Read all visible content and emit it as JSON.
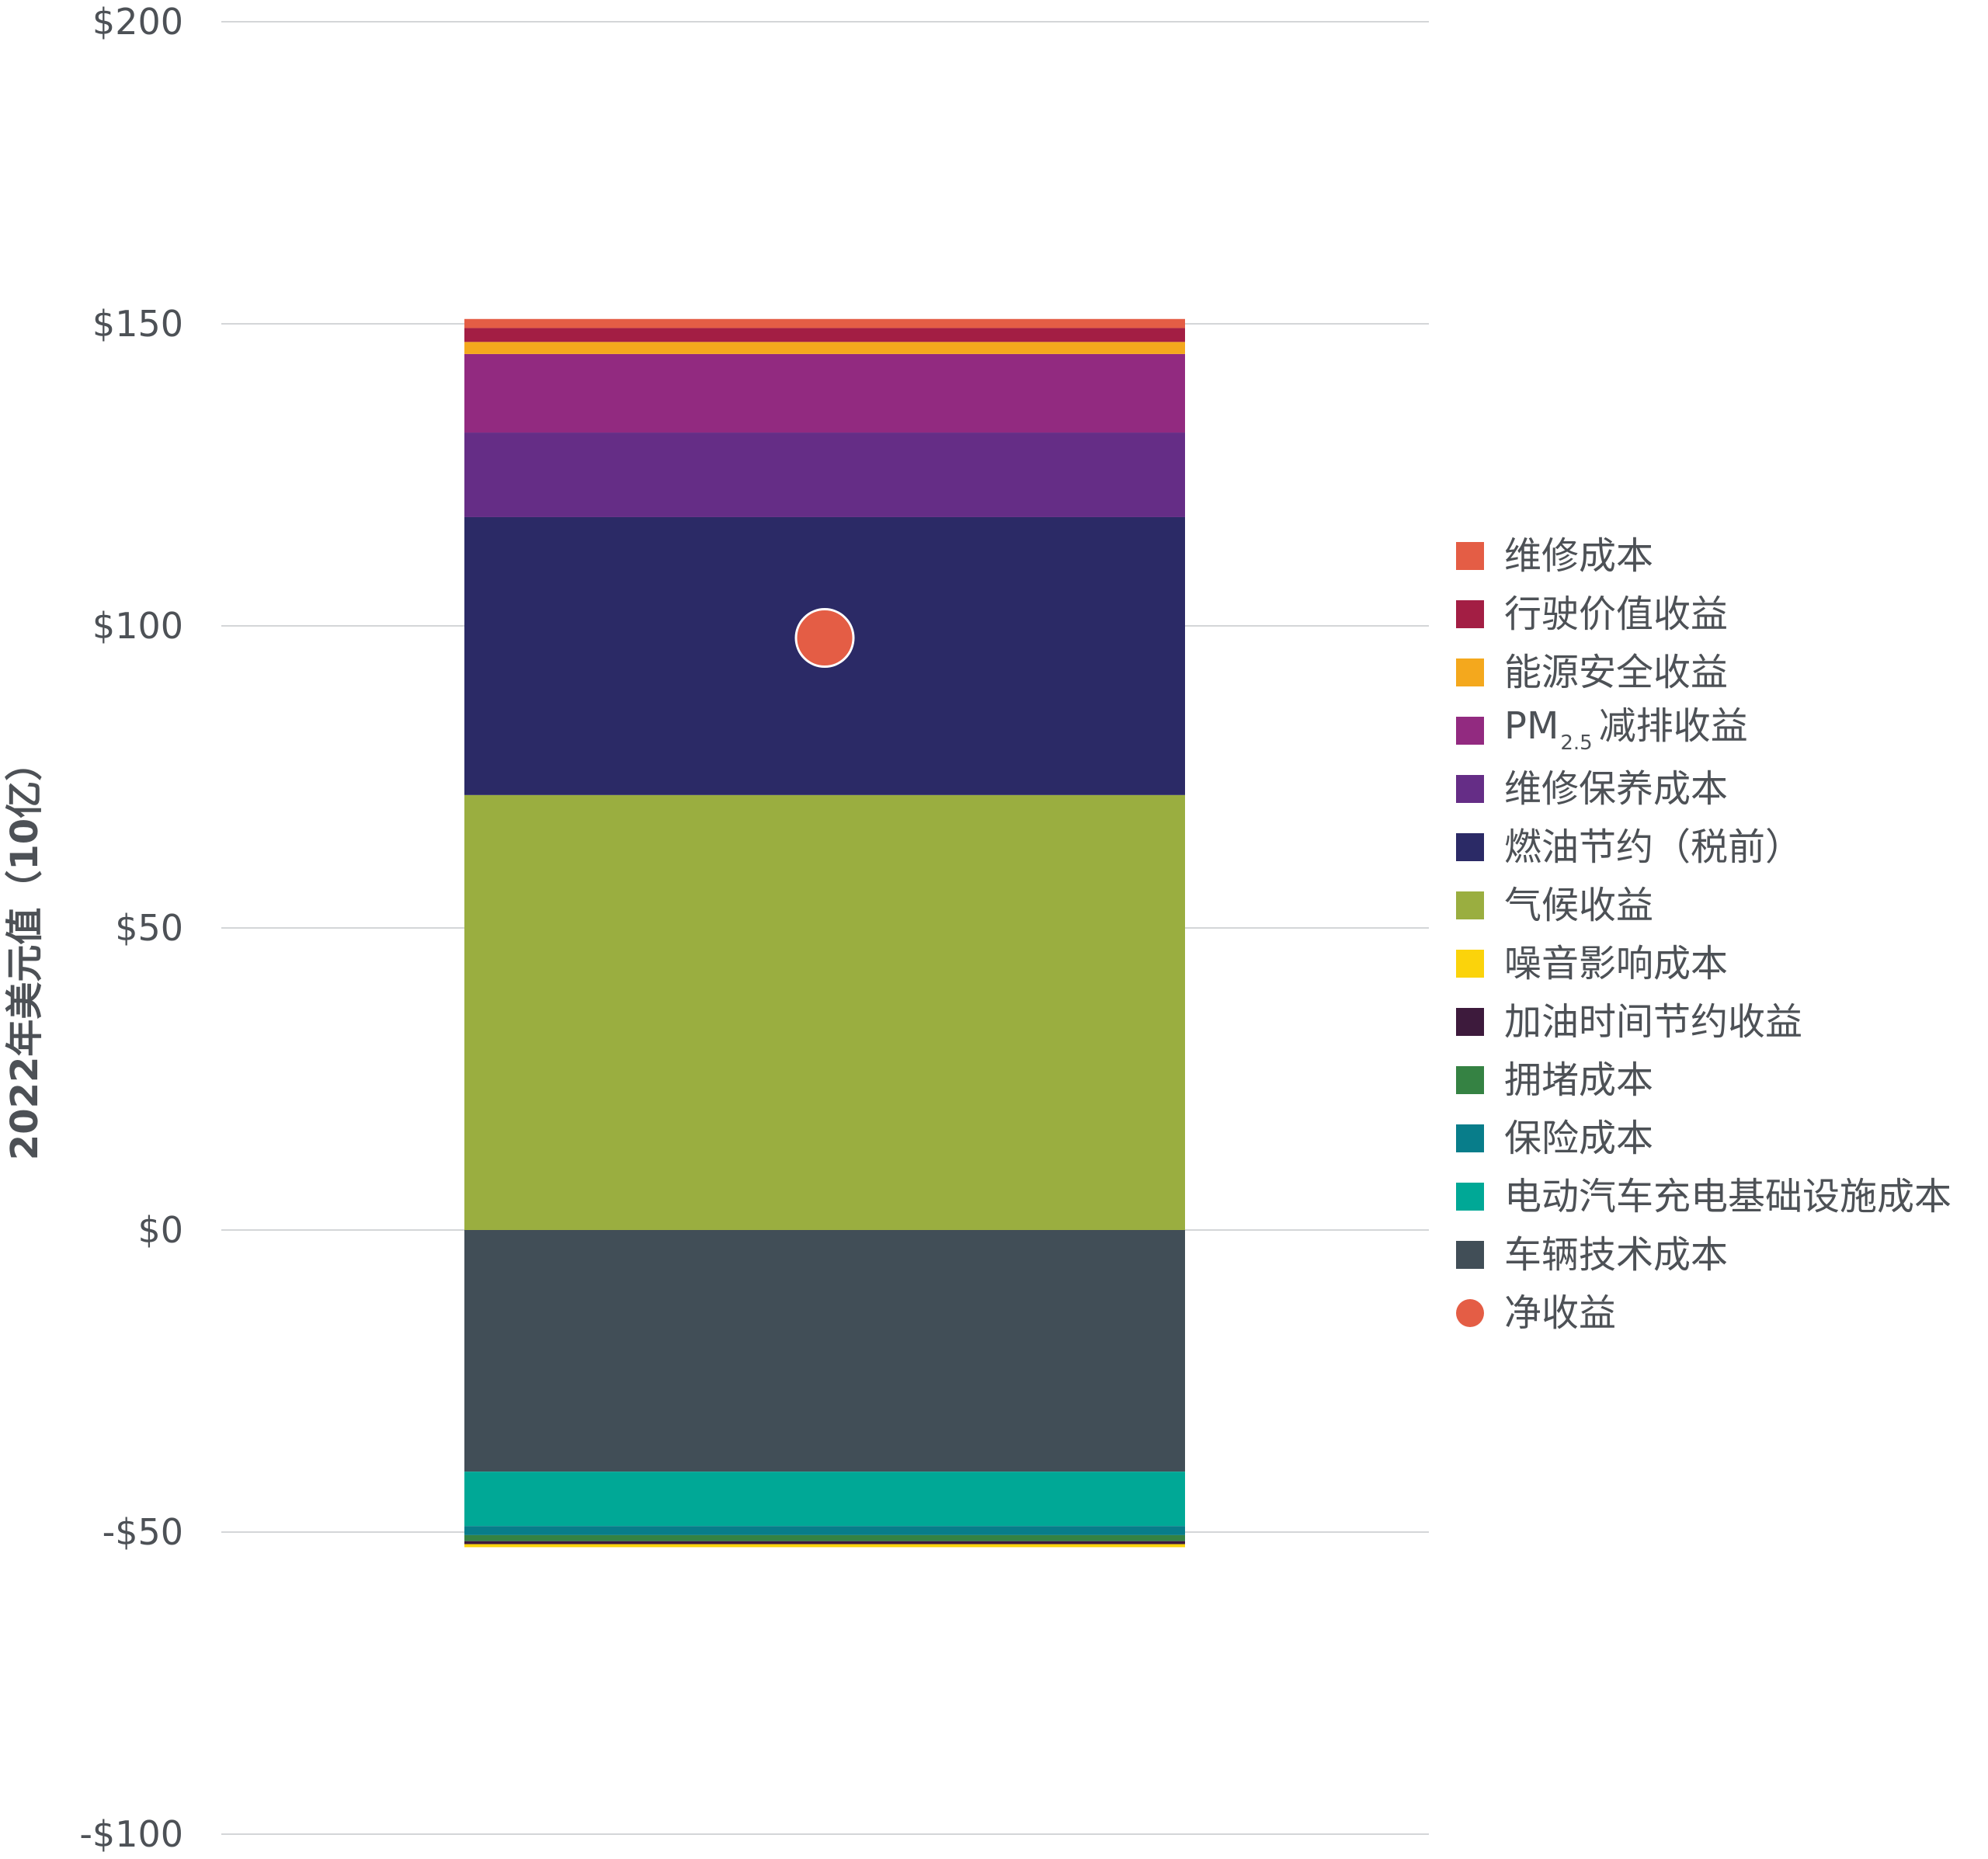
{
  "chart_data": {
    "type": "bar",
    "stacked": true,
    "categories": [
      ""
    ],
    "ylabel": "2022年美元值（10亿）",
    "ylim": [
      -100,
      200
    ],
    "yticks": [
      200,
      150,
      100,
      50,
      0,
      -50,
      -100
    ],
    "ytick_labels": [
      "$200",
      "$150",
      "$100",
      "$50",
      "$0",
      "-$50",
      "-$100"
    ],
    "grid": true,
    "legend_position": "right",
    "series": [
      {
        "key": "maint",
        "name": "维修成本",
        "color": "#e45d45",
        "values": [
          1.5
        ]
      },
      {
        "key": "drive",
        "name": "行驶价值收益",
        "color": "#a31e44",
        "values": [
          2.3
        ]
      },
      {
        "key": "energy",
        "name": "能源安全收益",
        "color": "#f4a81d",
        "values": [
          2.0
        ]
      },
      {
        "key": "pm",
        "name": "PM",
        "sub": "2.5",
        "suffix": "减排收益",
        "color": "#922a80",
        "values": [
          13.0
        ]
      },
      {
        "key": "service",
        "name": "维修保养成本",
        "color": "#652d86",
        "values": [
          14.0
        ]
      },
      {
        "key": "fuel",
        "name": "燃油节约（税前）",
        "color": "#2b2a66",
        "values": [
          46.0
        ]
      },
      {
        "key": "climate",
        "name": "气候收益",
        "color": "#9aae40",
        "values": [
          72.0
        ]
      },
      {
        "key": "noise",
        "name": "噪音影响成本",
        "color": "#fbd30b",
        "values": [
          -0.5
        ]
      },
      {
        "key": "refuel",
        "name": "加油时间节约收益",
        "color": "#3d1a3c",
        "values": [
          -0.5
        ]
      },
      {
        "key": "congestion",
        "name": "拥堵成本",
        "color": "#358243",
        "values": [
          -1.0
        ]
      },
      {
        "key": "insurance",
        "name": "保险成本",
        "color": "#087d8a",
        "values": [
          -1.5
        ]
      },
      {
        "key": "charging",
        "name": "电动汽车充电基础设施成本",
        "color": "#00a896",
        "values": [
          -9.0
        ]
      },
      {
        "key": "tech",
        "name": "车辆技术成本",
        "color": "#414e57",
        "values": [
          -40.0
        ]
      }
    ],
    "net": {
      "name": "净收益",
      "color": "#e45d45",
      "values": [
        98
      ]
    }
  }
}
